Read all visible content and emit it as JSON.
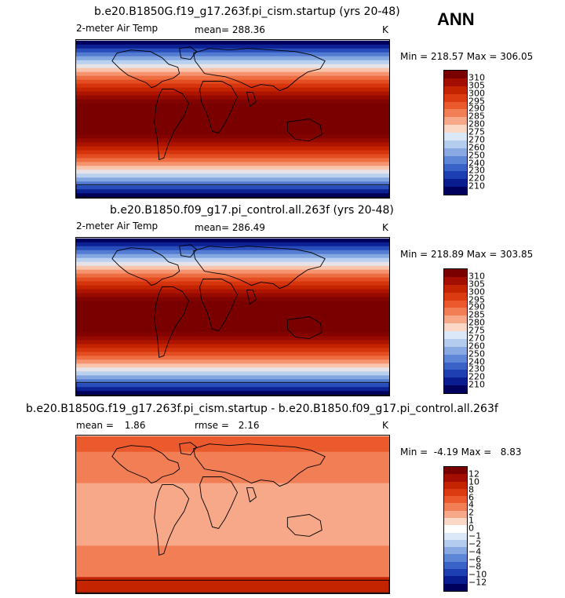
{
  "season": "ANN",
  "panels": [
    {
      "title": "b.e20.B1850G.f19_g17.263f.pi_cism.startup (yrs 20-48)",
      "left_label": "2-meter Air Temp",
      "stat_label": "mean=",
      "stat_value": "288.36",
      "units": "K",
      "minmax_text": "Min = 218.57 Max = 306.05",
      "min": 218.57,
      "max": 306.05,
      "palette": "temperature",
      "colorbar_labels": [
        "310",
        "305",
        "300",
        "295",
        "290",
        "285",
        "280",
        "275",
        "270",
        "260",
        "250",
        "240",
        "230",
        "220",
        "210"
      ]
    },
    {
      "title": "b.e20.B1850.f09_g17.pi_control.all.263f (yrs 20-48)",
      "left_label": "2-meter Air Temp",
      "stat_label": "mean=",
      "stat_value": "286.49",
      "units": "K",
      "minmax_text": "Min = 218.89 Max = 303.85",
      "min": 218.89,
      "max": 303.85,
      "palette": "temperature",
      "colorbar_labels": [
        "310",
        "305",
        "300",
        "295",
        "290",
        "285",
        "280",
        "275",
        "270",
        "260",
        "250",
        "240",
        "230",
        "220",
        "210"
      ]
    },
    {
      "title": "b.e20.B1850G.f19_g17.263f.pi_cism.startup - b.e20.B1850.f09_g17.pi_control.all.263f",
      "left_label": "mean =",
      "left_value": "1.86",
      "stat_label": "rmse =",
      "stat_value": "2.16",
      "units": "K",
      "minmax_text": "Min =  -4.19 Max =   8.83",
      "min": -4.19,
      "max": 8.83,
      "mean": 1.86,
      "rmse": 2.16,
      "palette": "difference",
      "colorbar_labels": [
        "12",
        "10",
        "8",
        "6",
        "4",
        "2",
        "1",
        "0",
        "−1",
        "−2",
        "−4",
        "−6",
        "−8",
        "−10",
        "−12"
      ]
    }
  ],
  "colors": {
    "temperature": [
      "#7a0000",
      "#a30e00",
      "#c52400",
      "#dc3a10",
      "#ea5a2c",
      "#f27e55",
      "#f7a888",
      "#fbd8c6",
      "#dbe8f7",
      "#b4ccee",
      "#88a9e2",
      "#5e86d6",
      "#3a63c8",
      "#1d3fb2",
      "#0a1d90",
      "#00005c"
    ],
    "difference": [
      "#7a0000",
      "#a30e00",
      "#c52400",
      "#dc3a10",
      "#ea5a2c",
      "#f27e55",
      "#f7a888",
      "#fbd8c6",
      "#ffffff",
      "#dbe8f7",
      "#b4ccee",
      "#88a9e2",
      "#5e86d6",
      "#3a63c8",
      "#1d3fb2",
      "#0a1d90",
      "#00005c"
    ]
  },
  "chart_data": [
    {
      "type": "heatmap",
      "title": "b.e20.B1850G.f19_g17.263f.pi_cism.startup (yrs 20-48)",
      "variable": "2-meter Air Temp",
      "units": "K",
      "mean": 288.36,
      "min": 218.57,
      "max": 306.05,
      "contour_levels": [
        210,
        220,
        230,
        240,
        250,
        260,
        270,
        275,
        280,
        285,
        290,
        295,
        300,
        305,
        310
      ]
    },
    {
      "type": "heatmap",
      "title": "b.e20.B1850.f09_g17.pi_control.all.263f (yrs 20-48)",
      "variable": "2-meter Air Temp",
      "units": "K",
      "mean": 286.49,
      "min": 218.89,
      "max": 303.85,
      "contour_levels": [
        210,
        220,
        230,
        240,
        250,
        260,
        270,
        275,
        280,
        285,
        290,
        295,
        300,
        305,
        310
      ]
    },
    {
      "type": "heatmap",
      "title": "b.e20.B1850G.f19_g17.263f.pi_cism.startup - b.e20.B1850.f09_g17.pi_control.all.263f",
      "units": "K",
      "mean": 1.86,
      "rmse": 2.16,
      "min": -4.19,
      "max": 8.83,
      "contour_levels": [
        -12,
        -10,
        -8,
        -6,
        -4,
        -2,
        -1,
        0,
        1,
        2,
        4,
        6,
        8,
        10,
        12
      ]
    }
  ]
}
